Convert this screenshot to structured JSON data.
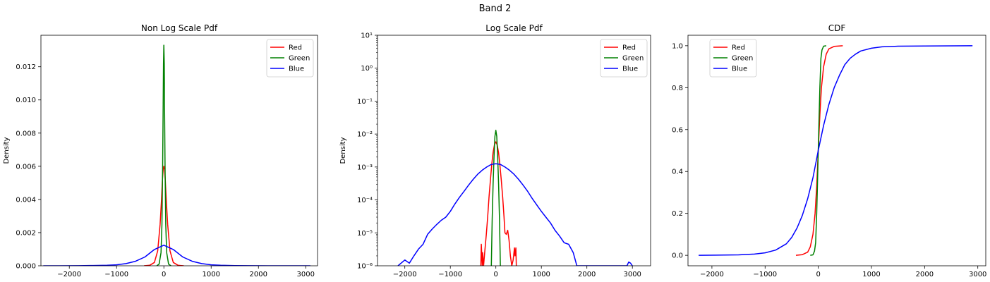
{
  "figure": {
    "suptitle": "Band 2"
  },
  "chart_data": [
    {
      "type": "line",
      "title": "Non Log Scale Pdf",
      "xlabel": "",
      "ylabel": "Density",
      "xlim": [
        -2600,
        3250
      ],
      "ylim": [
        0,
        0.0139
      ],
      "xscale": "linear",
      "yscale": "linear",
      "xticks": [
        -2000,
        -1000,
        0,
        1000,
        2000,
        3000
      ],
      "xtick_labels": [
        "−2000",
        "−1000",
        "0",
        "1000",
        "2000",
        "3000"
      ],
      "yticks": [
        0,
        0.002,
        0.004,
        0.006,
        0.008,
        0.01,
        0.012
      ],
      "ytick_labels": [
        "0.000",
        "0.002",
        "0.004",
        "0.006",
        "0.008",
        "0.010",
        "0.012"
      ],
      "grid": false,
      "legend_position": "upper right",
      "series": [
        {
          "name": "Red",
          "color": "#ff0000",
          "x": [
            -420,
            -300,
            -200,
            -130,
            -80,
            -50,
            -30,
            -15,
            0,
            15,
            30,
            50,
            80,
            130,
            200,
            300,
            420
          ],
          "y": [
            0,
            3e-05,
            0.0002,
            0.0009,
            0.0025,
            0.004,
            0.0052,
            0.0058,
            0.006,
            0.0058,
            0.0052,
            0.004,
            0.0025,
            0.0009,
            0.0002,
            3e-05,
            0
          ]
        },
        {
          "name": "Green",
          "color": "#008000",
          "x": [
            -150,
            -100,
            -60,
            -40,
            -25,
            -15,
            -8,
            0,
            8,
            15,
            25,
            40,
            60,
            100,
            150
          ],
          "y": [
            0,
            0.0001,
            0.0008,
            0.0025,
            0.006,
            0.0095,
            0.0122,
            0.0133,
            0.0122,
            0.0095,
            0.006,
            0.0025,
            0.0008,
            0.0001,
            0
          ]
        },
        {
          "name": "Blue",
          "color": "#0000ff",
          "x": [
            -2550,
            -2200,
            -1800,
            -1500,
            -1200,
            -1000,
            -800,
            -600,
            -400,
            -200,
            0,
            200,
            400,
            600,
            800,
            1000,
            1200,
            1500,
            1800,
            2200,
            2600,
            2950,
            3100
          ],
          "y": [
            0,
            2e-06,
            6e-06,
            1.5e-05,
            3e-05,
            6e-05,
            0.00013,
            0.00027,
            0.00053,
            0.00098,
            0.00124,
            0.00098,
            0.00053,
            0.00027,
            0.00013,
            6e-05,
            3e-05,
            1e-05,
            3e-06,
            1e-06,
            0,
            1e-06,
            0
          ]
        }
      ]
    },
    {
      "type": "line",
      "title": "Log Scale Pdf",
      "xlabel": "",
      "ylabel": "Density",
      "xlim": [
        -2600,
        3400
      ],
      "ylim": [
        1e-06,
        10
      ],
      "xscale": "linear",
      "yscale": "log",
      "xticks": [
        -2000,
        -1000,
        0,
        1000,
        2000,
        3000
      ],
      "xtick_labels": [
        "−2000",
        "−1000",
        "0",
        "1000",
        "2000",
        "3000"
      ],
      "yticks": [
        1e-06,
        1e-05,
        0.0001,
        0.001,
        0.01,
        0.1,
        1,
        10
      ],
      "ytick_labels": [
        "10⁻⁶",
        "10⁻⁵",
        "10⁻⁴",
        "10⁻³",
        "10⁻²",
        "10⁻¹",
        "10⁰",
        "10¹"
      ],
      "grid": false,
      "legend_position": "upper right",
      "series": [
        {
          "name": "Red",
          "color": "#ff0000",
          "x": [
            -330,
            -320,
            -300,
            -290,
            -270,
            -240,
            -210,
            -180,
            -150,
            -120,
            -90,
            -60,
            -30,
            0,
            30,
            60,
            90,
            120,
            150,
            180,
            200,
            230,
            260,
            290,
            320,
            350,
            380,
            410,
            420,
            440,
            450
          ],
          "y": [
            1e-06,
            4.5e-06,
            1e-06,
            2.5e-06,
            1e-06,
            3e-06,
            9e-06,
            3e-05,
            0.00012,
            0.0004,
            0.0012,
            0.0028,
            0.0048,
            0.0058,
            0.0047,
            0.0027,
            0.0011,
            0.0004,
            0.00012,
            3e-05,
            1e-05,
            9e-06,
            1.2e-05,
            6e-06,
            2e-06,
            1e-06,
            1.5e-06,
            3.5e-06,
            2e-06,
            3.5e-06,
            1e-06
          ]
        },
        {
          "name": "Green",
          "color": "#008000",
          "x": [
            -100,
            -80,
            -60,
            -40,
            -20,
            0,
            20,
            40,
            60,
            80,
            100
          ],
          "y": [
            1e-06,
            2.5e-05,
            0.0003,
            0.002,
            0.0085,
            0.013,
            0.0085,
            0.002,
            0.0003,
            2.5e-05,
            1e-06
          ]
        },
        {
          "name": "Blue",
          "color": "#0000ff",
          "x": [
            -2150,
            -2000,
            -1900,
            -1800,
            -1700,
            -1600,
            -1500,
            -1400,
            -1300,
            -1200,
            -1100,
            -1000,
            -900,
            -800,
            -700,
            -600,
            -500,
            -400,
            -300,
            -200,
            -100,
            0,
            100,
            200,
            300,
            400,
            500,
            600,
            700,
            800,
            900,
            1000,
            1100,
            1200,
            1300,
            1400,
            1500,
            1600,
            1700,
            1780,
            2880,
            2920,
            2960,
            3000
          ],
          "y": [
            1e-06,
            1.5e-06,
            1.2e-06,
            2e-06,
            3.2e-06,
            4.5e-06,
            9e-06,
            1.3e-05,
            1.8e-05,
            2.4e-05,
            3e-05,
            4.5e-05,
            7.5e-05,
            0.00012,
            0.00018,
            0.00028,
            0.00042,
            0.0006,
            0.0008,
            0.001,
            0.0012,
            0.00125,
            0.0012,
            0.001,
            0.0008,
            0.0006,
            0.00042,
            0.00028,
            0.00018,
            0.00011,
            7e-05,
            4.5e-05,
            3e-05,
            2e-05,
            1.2e-05,
            8e-06,
            5e-06,
            4.5e-06,
            2.5e-06,
            1e-06,
            1e-06,
            1.3e-06,
            1.2e-06,
            1e-06
          ]
        }
      ]
    },
    {
      "type": "line",
      "title": "CDF",
      "xlabel": "",
      "ylabel": "",
      "xlim": [
        -2450,
        3150
      ],
      "ylim": [
        -0.05,
        1.05
      ],
      "xscale": "linear",
      "yscale": "linear",
      "xticks": [
        -2000,
        -1000,
        0,
        1000,
        2000,
        3000
      ],
      "xtick_labels": [
        "−2000",
        "−1000",
        "0",
        "1000",
        "2000",
        "3000"
      ],
      "yticks": [
        0,
        0.2,
        0.4,
        0.6,
        0.8,
        1.0
      ],
      "ytick_labels": [
        "0.0",
        "0.2",
        "0.4",
        "0.6",
        "0.8",
        "1.0"
      ],
      "grid": false,
      "legend_position": "upper left",
      "series": [
        {
          "name": "Red",
          "color": "#ff0000",
          "x": [
            -420,
            -300,
            -200,
            -150,
            -100,
            -60,
            -30,
            0,
            30,
            60,
            100,
            150,
            200,
            300,
            460
          ],
          "y": [
            0,
            0.003,
            0.015,
            0.04,
            0.1,
            0.2,
            0.33,
            0.5,
            0.67,
            0.8,
            0.9,
            0.96,
            0.985,
            0.997,
            1.0
          ]
        },
        {
          "name": "Green",
          "color": "#008000",
          "x": [
            -150,
            -100,
            -70,
            -50,
            -30,
            -15,
            0,
            15,
            30,
            50,
            70,
            100,
            150
          ],
          "y": [
            0,
            0.002,
            0.02,
            0.06,
            0.2,
            0.34,
            0.5,
            0.66,
            0.8,
            0.94,
            0.98,
            0.998,
            1.0
          ]
        },
        {
          "name": "Blue",
          "color": "#0000ff",
          "x": [
            -2250,
            -1500,
            -1200,
            -1000,
            -800,
            -600,
            -500,
            -400,
            -300,
            -200,
            -100,
            0,
            100,
            200,
            300,
            400,
            500,
            600,
            700,
            800,
            1000,
            1200,
            1500,
            2000,
            2900
          ],
          "y": [
            0,
            0.002,
            0.006,
            0.012,
            0.025,
            0.055,
            0.085,
            0.13,
            0.19,
            0.27,
            0.37,
            0.5,
            0.62,
            0.72,
            0.8,
            0.86,
            0.91,
            0.94,
            0.96,
            0.975,
            0.988,
            0.995,
            0.998,
            0.999,
            1.0
          ]
        }
      ]
    }
  ]
}
